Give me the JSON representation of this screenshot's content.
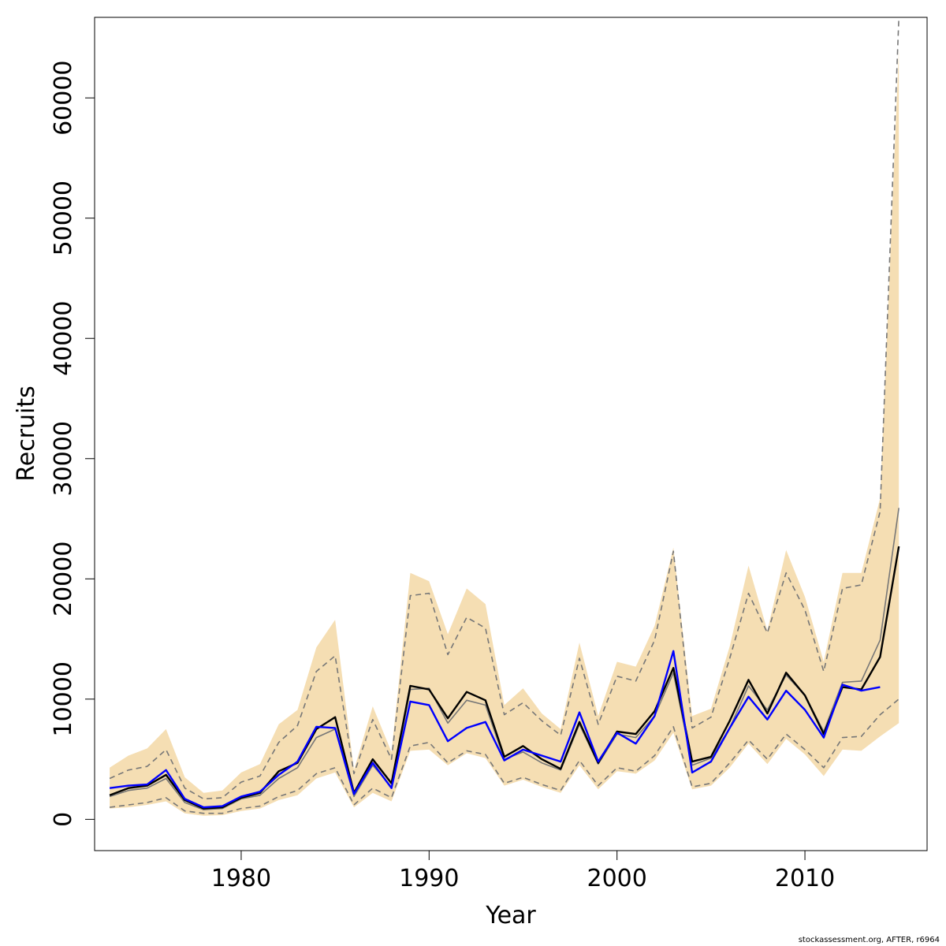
{
  "chart_data": {
    "type": "line",
    "xlabel": "Year",
    "ylabel": "Recruits",
    "xlim": [
      1972.2,
      2016.5
    ],
    "ylim": [
      -2600,
      66700
    ],
    "x_ticks": [
      1980,
      1990,
      2000,
      2010
    ],
    "y_ticks": [
      0,
      10000,
      20000,
      30000,
      40000,
      50000,
      60000
    ],
    "years": [
      1973,
      1974,
      1975,
      1976,
      1977,
      1978,
      1979,
      1980,
      1981,
      1982,
      1983,
      1984,
      1985,
      1986,
      1987,
      1988,
      1989,
      1990,
      1991,
      1992,
      1993,
      1994,
      1995,
      1996,
      1997,
      1998,
      1999,
      2000,
      2001,
      2002,
      2003,
      2004,
      2005,
      2006,
      2007,
      2008,
      2009,
      2010,
      2011,
      2012,
      2013,
      2014,
      2015
    ],
    "series": [
      {
        "role": "shaded_interval_upper",
        "color": "#f5deb3",
        "values": [
          4300,
          5300,
          5900,
          7500,
          3500,
          2200,
          2400,
          3900,
          4600,
          7900,
          9100,
          14300,
          16600,
          4100,
          9400,
          5600,
          20500,
          19800,
          15400,
          19200,
          17900,
          9500,
          10900,
          8800,
          7500,
          14700,
          8600,
          13100,
          12700,
          16100,
          22600,
          8600,
          9200,
          14400,
          21100,
          15700,
          22400,
          18500,
          13100,
          20500,
          20500,
          26700,
          64000
        ]
      },
      {
        "role": "shaded_interval_lower",
        "color": "#f5deb3",
        "values": [
          900,
          1000,
          1200,
          1500,
          500,
          300,
          350,
          700,
          900,
          1600,
          2000,
          3400,
          3900,
          1000,
          2200,
          1500,
          5700,
          5800,
          4500,
          5500,
          5100,
          2800,
          3300,
          2700,
          2200,
          4500,
          2500,
          4000,
          3800,
          4900,
          7200,
          2500,
          2800,
          4300,
          6300,
          4600,
          6700,
          5400,
          3600,
          5800,
          5700,
          6900,
          8000
        ]
      },
      {
        "role": "dashed_interval_upper",
        "color": "#777777",
        "values": [
          3400,
          4100,
          4400,
          5800,
          2600,
          1700,
          1800,
          3100,
          3600,
          6400,
          7800,
          12300,
          13600,
          3800,
          8300,
          5000,
          18600,
          18800,
          13700,
          16800,
          15900,
          8700,
          9700,
          8200,
          7000,
          13400,
          7900,
          11900,
          11500,
          14900,
          22300,
          7600,
          8500,
          13400,
          18800,
          15500,
          20500,
          17400,
          12300,
          19200,
          19500,
          25600,
          66700
        ]
      },
      {
        "role": "dashed_interval_lower",
        "color": "#777777",
        "values": [
          1000,
          1200,
          1400,
          1800,
          700,
          500,
          500,
          900,
          1100,
          1900,
          2400,
          3800,
          4300,
          1200,
          2600,
          1800,
          6100,
          6400,
          4700,
          5700,
          5400,
          3000,
          3500,
          2900,
          2400,
          4900,
          2800,
          4300,
          4000,
          5300,
          7700,
          2700,
          3000,
          4700,
          6600,
          5000,
          7100,
          5800,
          4300,
          6800,
          6900,
          8700,
          10000
        ]
      },
      {
        "role": "median",
        "color": "#777777",
        "values": [
          1900,
          2400,
          2600,
          3400,
          1400,
          800,
          900,
          1700,
          2000,
          3400,
          4300,
          6800,
          7500,
          1900,
          4500,
          2700,
          10800,
          10900,
          8000,
          9900,
          9500,
          5000,
          5600,
          4700,
          4100,
          7900,
          4600,
          7100,
          6800,
          8600,
          12200,
          4500,
          5100,
          7600,
          11100,
          9100,
          12000,
          10300,
          7300,
          11400,
          11500,
          14900,
          25900
        ]
      },
      {
        "role": "estimate",
        "color": "#000000",
        "values": [
          2000,
          2600,
          2800,
          3700,
          1600,
          900,
          1000,
          1800,
          2200,
          4000,
          4700,
          7500,
          8500,
          2200,
          5000,
          3000,
          11100,
          10800,
          8400,
          10600,
          9900,
          5200,
          6100,
          5000,
          4200,
          8100,
          4700,
          7300,
          7100,
          9000,
          12600,
          4800,
          5200,
          8200,
          11600,
          8800,
          12200,
          10300,
          7100,
          11000,
          10800,
          13500,
          22700
        ]
      },
      {
        "role": "comparison",
        "color": "#0000ff",
        "values": [
          2600,
          2800,
          2900,
          4100,
          1700,
          1000,
          1100,
          1900,
          2300,
          3700,
          4800,
          7700,
          7600,
          2100,
          4700,
          2600,
          9800,
          9500,
          6500,
          7600,
          8100,
          4900,
          5800,
          5300,
          4800,
          8900,
          4800,
          7200,
          6300,
          8600,
          14000,
          3900,
          4800,
          7600,
          10200,
          8300,
          10700,
          9100,
          6800,
          11200,
          10700,
          11000,
          null
        ]
      }
    ]
  },
  "footer": {
    "text": "stockassessment.org, AFTER, r6964"
  }
}
